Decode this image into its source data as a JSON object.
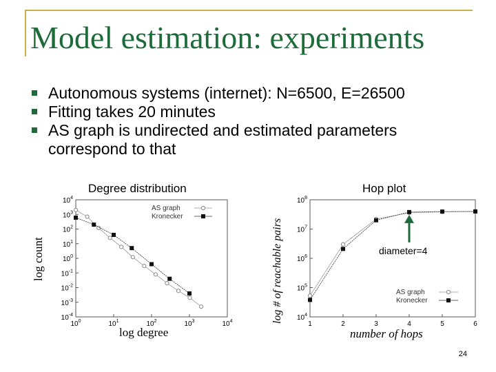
{
  "slide": {
    "title": "Model estimation: experiments",
    "bullets": [
      "Autonomous systems (internet): N=6500, E=26500",
      "Fitting takes 20 minutes",
      "AS graph is undirected and estimated parameters correspond to that"
    ],
    "page_number": "24",
    "accent_color": "#1e6b3a",
    "frame_color": "#c8b14a"
  },
  "chart_data": [
    {
      "type": "scatter",
      "title": "Degree distribution",
      "xlabel": "log degree",
      "ylabel": "log count",
      "xscale": "log",
      "yscale": "log",
      "xlim": [
        1,
        10000
      ],
      "ylim": [
        0.0001,
        10000
      ],
      "xticks": [
        "10^0",
        "10^1",
        "10^2",
        "10^3",
        "10^4"
      ],
      "yticks": [
        "10^4",
        "10^3",
        "10^2",
        "10^1",
        "10^0",
        "10^-1",
        "10^-2",
        "10^-3",
        "10^-4"
      ],
      "legend_position": "top-right",
      "series": [
        {
          "name": "AS graph",
          "marker": "open-circle",
          "x": [
            1,
            2,
            4,
            8,
            16,
            32,
            64,
            128,
            256,
            512,
            1024,
            2048
          ],
          "y": [
            2000,
            700,
            120,
            25,
            6,
            1.2,
            0.3,
            0.08,
            0.02,
            0.006,
            0.002,
            0.0005
          ]
        },
        {
          "name": "Kronecker",
          "marker": "filled-square",
          "x": [
            1,
            3,
            10,
            30,
            100,
            300,
            1000
          ],
          "y": [
            600,
            200,
            40,
            5,
            0.4,
            0.04,
            0.004
          ]
        }
      ]
    },
    {
      "type": "line",
      "title": "Hop plot",
      "xlabel": "number of hops",
      "ylabel": "log # of reachable pairs",
      "yscale": "log",
      "xlim": [
        1,
        6
      ],
      "ylim": [
        10000,
        100000000
      ],
      "xticks": [
        "1",
        "2",
        "3",
        "4",
        "5",
        "6"
      ],
      "yticks": [
        "10^8",
        "10^7",
        "10^6",
        "10^5",
        "10^4"
      ],
      "legend_position": "bottom-right",
      "annotation": "diameter=4",
      "annotation_color": "#1e6b3a",
      "annotation_x": 4,
      "series": [
        {
          "name": "AS graph",
          "marker": "open-circle",
          "x": [
            1,
            2,
            3,
            4,
            5,
            6
          ],
          "y": [
            53000,
            3000000,
            22000000,
            36000000,
            39000000,
            39500000
          ]
        },
        {
          "name": "Kronecker",
          "marker": "filled-square",
          "x": [
            1,
            2,
            3,
            4,
            5,
            6
          ],
          "y": [
            38000,
            2100000,
            20000000,
            38000000,
            39500000,
            40000000
          ]
        }
      ]
    }
  ]
}
